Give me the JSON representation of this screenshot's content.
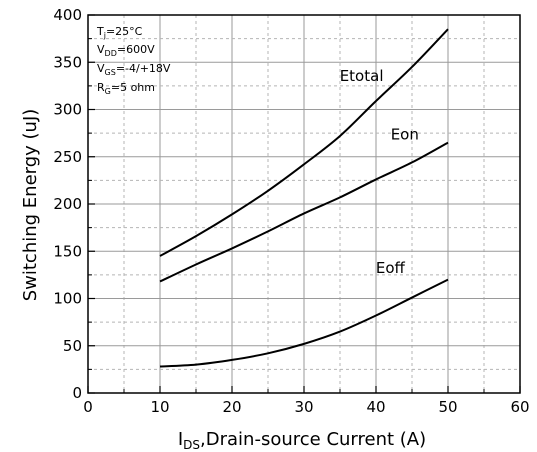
{
  "chart_data": {
    "type": "line",
    "xlabel": {
      "main": "I",
      "sub": "DS",
      "rest": ",Drain-source Current (A)"
    },
    "ylabel": "Switching Energy (uJ)",
    "xlim": [
      0,
      60
    ],
    "ylim": [
      0,
      400
    ],
    "x_ticks": [
      0,
      10,
      20,
      30,
      40,
      50,
      60
    ],
    "y_ticks": [
      0,
      50,
      100,
      150,
      200,
      250,
      300,
      350,
      400
    ],
    "x_tick_labels": [
      "0",
      "10",
      "20",
      "30",
      "40",
      "50",
      "60"
    ],
    "y_tick_labels": [
      "0",
      "50",
      "100",
      "150",
      "200",
      "250",
      "300",
      "350",
      "400"
    ],
    "grid": true,
    "conditions": [
      {
        "main": "T",
        "sub": "j",
        "rest": "=25°C"
      },
      {
        "main": "V",
        "sub": "DD",
        "rest": "=600V"
      },
      {
        "main": "V",
        "sub": "GS",
        "rest": "=-4/+18V"
      },
      {
        "main": "R",
        "sub": "G",
        "rest": "=5 ohm"
      }
    ],
    "series": [
      {
        "name": "Etotal",
        "x": [
          10,
          15,
          20,
          25,
          30,
          35,
          40,
          45,
          50
        ],
        "y": [
          145,
          166,
          189,
          214,
          242,
          272,
          309,
          345,
          385
        ]
      },
      {
        "name": "Eon",
        "x": [
          10,
          15,
          20,
          25,
          30,
          35,
          40,
          45,
          50
        ],
        "y": [
          118,
          136,
          153,
          171,
          190,
          207,
          226,
          244,
          265
        ]
      },
      {
        "name": "Eoff",
        "x": [
          10,
          15,
          20,
          25,
          30,
          35,
          40,
          45,
          50
        ],
        "y": [
          28,
          30,
          35,
          42,
          52,
          65,
          82,
          101,
          120
        ]
      }
    ]
  }
}
